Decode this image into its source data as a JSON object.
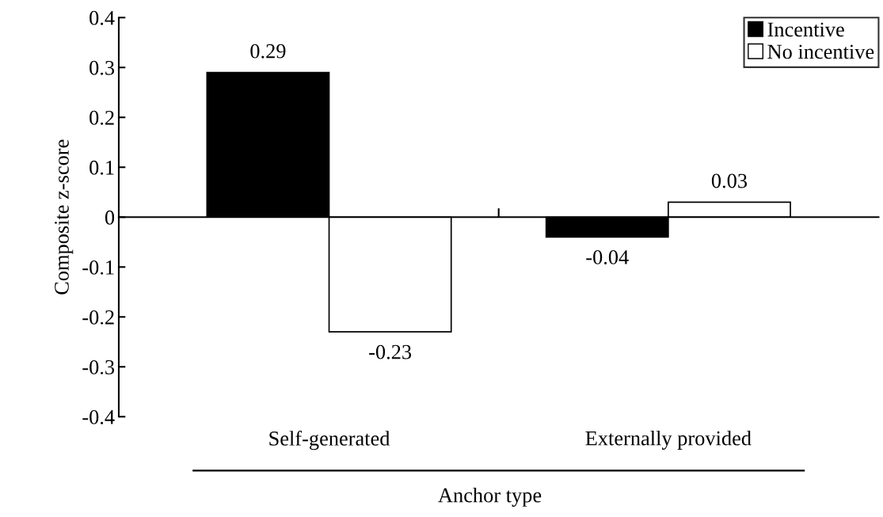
{
  "chart_data": {
    "type": "bar",
    "categories": [
      "Self-generated",
      "Externally provided"
    ],
    "series": [
      {
        "name": "Incentive",
        "color": "#000000",
        "values": [
          0.29,
          -0.04
        ]
      },
      {
        "name": "No incentive",
        "color": "#ffffff",
        "values": [
          -0.23,
          0.03
        ]
      }
    ],
    "xlabel": "Anchor type",
    "ylabel": "Composite z-score",
    "ylim": [
      -0.4,
      0.4
    ],
    "yticks": [
      -0.4,
      -0.3,
      -0.2,
      -0.1,
      0,
      0.1,
      0.2,
      0.3,
      0.4
    ],
    "data_labels": true,
    "legend": "top right"
  }
}
